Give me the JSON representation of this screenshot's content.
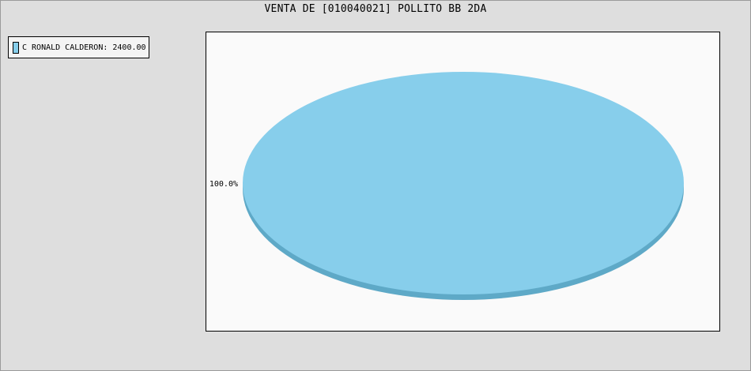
{
  "chart_data": {
    "type": "pie",
    "title": "VENTA DE [010040021] POLLITO BB 2DA",
    "slices": [
      {
        "name": "C RONALD CALDERON",
        "value": 2400.0,
        "value_text": "2400.00",
        "percent": 100.0,
        "percent_label": "100.0%",
        "color": "#87ceeb",
        "edge_color": "#5ea9c7"
      }
    ],
    "legend_entries": [
      "C RONALD CALDERON: 2400.00"
    ],
    "legend_position": "top-left",
    "three_d": true
  },
  "colors": {
    "background": "#dedede",
    "plot_background": "#fafafa"
  }
}
